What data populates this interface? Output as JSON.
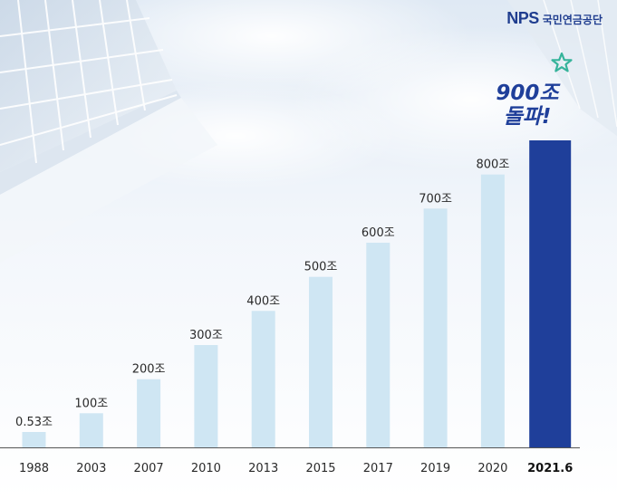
{
  "brand": {
    "logo_text": "NPS",
    "name": "국민연금공단"
  },
  "callout": {
    "line1": "900조",
    "line2": "돌파!"
  },
  "colors": {
    "bar": "#cfe6f3",
    "highlight_bar": "#1f3f9a",
    "axis": "#555555",
    "star": "#34b39a",
    "brand": "#1f3d8f"
  },
  "icons": {
    "star": "star-icon",
    "logo": "nps-logo-icon"
  },
  "chart_data": {
    "type": "bar",
    "categories": [
      "1988",
      "2003",
      "2007",
      "2010",
      "2013",
      "2015",
      "2017",
      "2019",
      "2020",
      "2021.6"
    ],
    "values": [
      0.53,
      100,
      200,
      300,
      400,
      500,
      600,
      700,
      800,
      900
    ],
    "value_labels": [
      "0.53조",
      "100조",
      "200조",
      "300조",
      "400조",
      "500조",
      "600조",
      "700조",
      "800조",
      ""
    ],
    "highlight_index": 9,
    "title": "",
    "xlabel": "",
    "ylabel": "",
    "ylim": [
      0,
      900
    ],
    "grid": false,
    "legend": "none"
  }
}
